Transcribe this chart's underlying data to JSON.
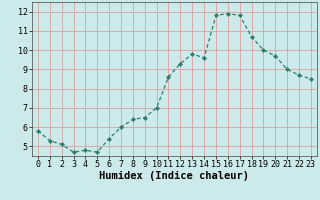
{
  "xlabel": "Humidex (Indice chaleur)",
  "x": [
    0,
    1,
    2,
    3,
    4,
    5,
    6,
    7,
    8,
    9,
    10,
    11,
    12,
    13,
    14,
    15,
    16,
    17,
    18,
    19,
    20,
    21,
    22,
    23
  ],
  "y": [
    5.8,
    5.3,
    5.1,
    4.7,
    4.8,
    4.7,
    5.4,
    6.0,
    6.4,
    6.5,
    7.0,
    8.6,
    9.3,
    9.8,
    9.6,
    11.8,
    11.9,
    11.8,
    10.7,
    10.0,
    9.7,
    9.0,
    8.7,
    8.5
  ],
  "line_color": "#2e7d6e",
  "marker": "D",
  "marker_size": 2.0,
  "background_color": "#cceaea",
  "grid_color": "#d9a0a0",
  "ylim": [
    4.5,
    12.5
  ],
  "xlim": [
    -0.5,
    23.5
  ],
  "yticks": [
    5,
    6,
    7,
    8,
    9,
    10,
    11,
    12
  ],
  "xticks": [
    0,
    1,
    2,
    3,
    4,
    5,
    6,
    7,
    8,
    9,
    10,
    11,
    12,
    13,
    14,
    15,
    16,
    17,
    18,
    19,
    20,
    21,
    22,
    23
  ],
  "tick_fontsize": 6.0,
  "xlabel_fontsize": 7.5
}
